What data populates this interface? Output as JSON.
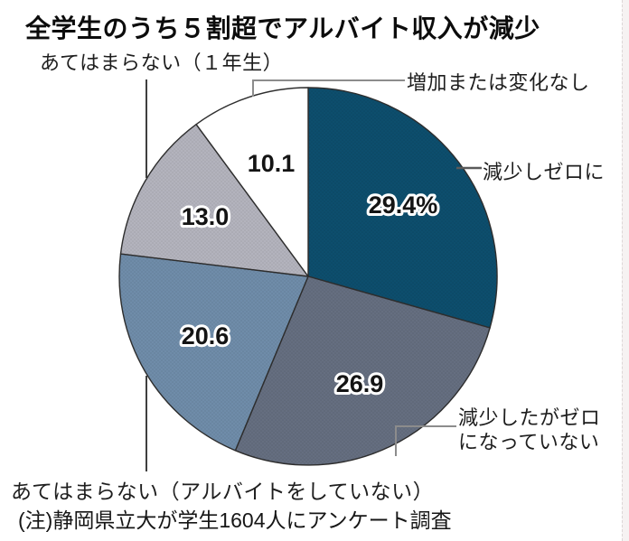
{
  "page": {
    "title": "全学生のうち５割超でアルバイト収入が減少",
    "note": "(注)静岡県立大が学生1604人にアンケート調査"
  },
  "annotations": {
    "freshman": "あてはまらない（１年生）",
    "increase": "増加または変化なし",
    "zero": "減少しゼロに",
    "notzero_line1": "減少したがゼロ",
    "notzero_line2": "になっていない",
    "nojob": "あてはまらない（アルバイトをしていない）"
  },
  "chart_data": {
    "type": "pie",
    "title": "全学生のうち５割超でアルバイト収入が減少",
    "unit": "%",
    "total": 100.0,
    "start_angle_deg": 0,
    "direction": "clockwise",
    "outline_color": "#2e2e2e",
    "value_halo_color": "#ffffff",
    "slices": [
      {
        "label": "減少しゼロに",
        "value": 29.4,
        "display": "29.4%",
        "color": "#0d4e6d"
      },
      {
        "label": "減少したがゼロになっていない",
        "value": 26.9,
        "display": "26.9",
        "color": "#656e80"
      },
      {
        "label": "あてはまらない（アルバイトをしていない）",
        "value": 20.6,
        "display": "20.6",
        "color": "#6f8ca9"
      },
      {
        "label": "あてはまらない（１年生）",
        "value": 13.0,
        "display": "13.0",
        "color": "#b3b3bd"
      },
      {
        "label": "増加または変化なし",
        "value": 10.1,
        "display": "10.1",
        "color": "#ffffff"
      }
    ]
  }
}
